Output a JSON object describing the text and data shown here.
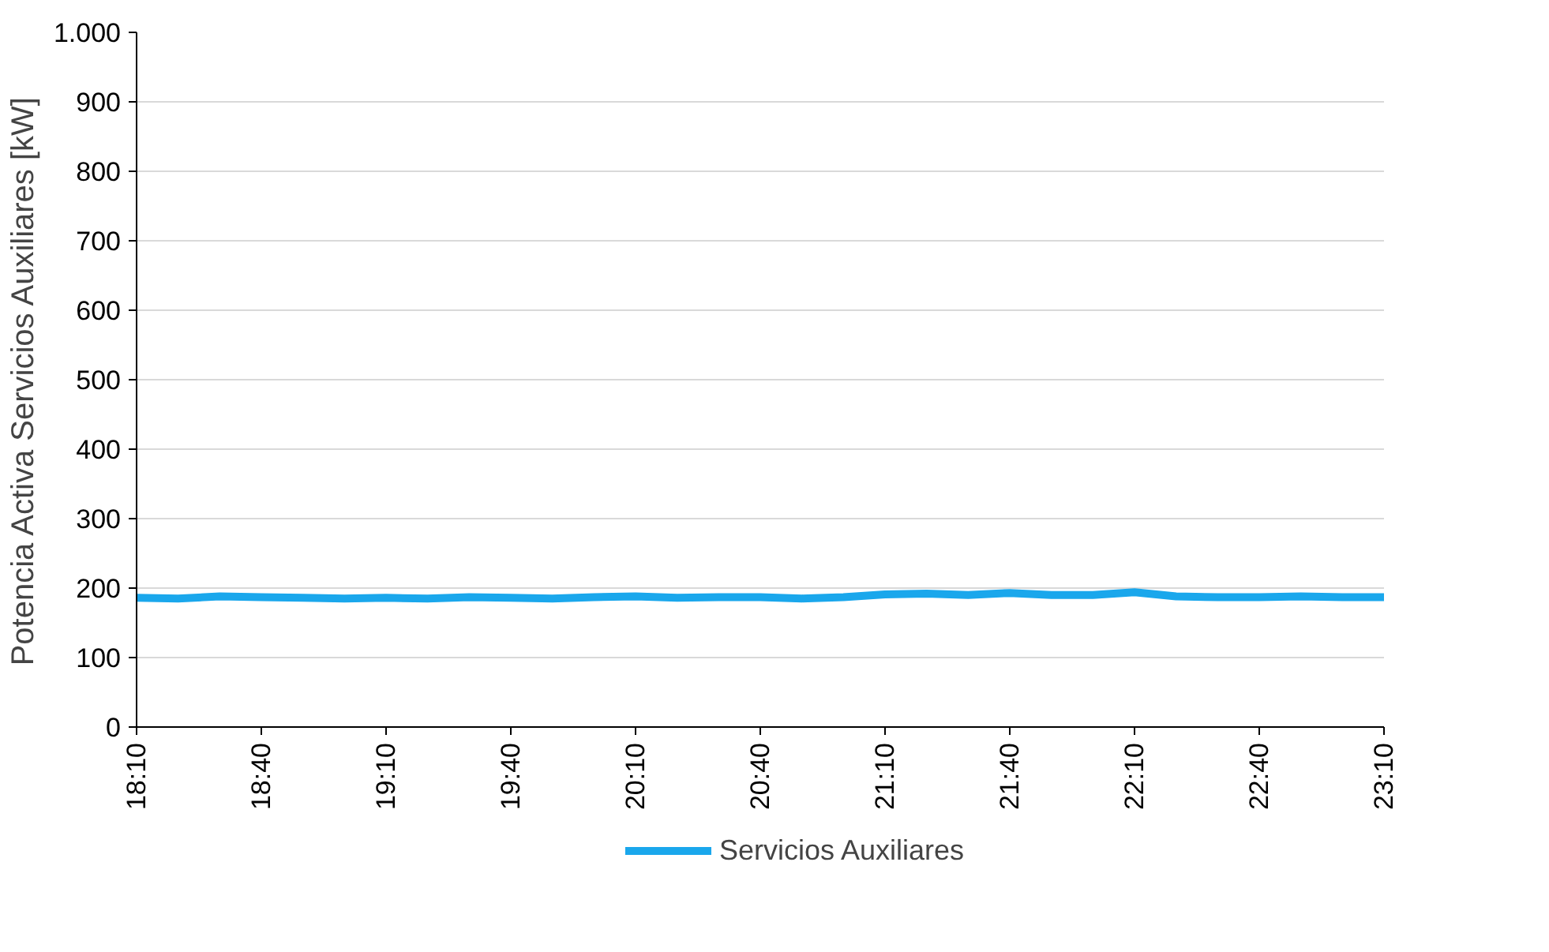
{
  "chart_data": {
    "type": "line",
    "ylabel": "Potencia Activa Servicios Auxiliares [kW]",
    "x": [
      18.1667,
      18.3333,
      18.5,
      18.6667,
      18.8333,
      19,
      19.1667,
      19.3333,
      19.5,
      19.6667,
      19.8333,
      20,
      20.1667,
      20.3333,
      20.5,
      20.6667,
      20.8333,
      21,
      21.1667,
      21.3333,
      21.5,
      21.6667,
      21.8333,
      22,
      22.1667,
      22.3333,
      22.5,
      22.6667,
      22.8333,
      23,
      23.1667
    ],
    "series": [
      {
        "name": "Servicios Auxiliares",
        "color": "#1aa7ec",
        "values": [
          186,
          185,
          188,
          187,
          186,
          185,
          186,
          185,
          187,
          186,
          185,
          187,
          188,
          186,
          187,
          187,
          185,
          187,
          191,
          192,
          190,
          193,
          190,
          190,
          194,
          188,
          187,
          187,
          188,
          187,
          187
        ]
      }
    ],
    "xlim": [
      18.1667,
      23.1667
    ],
    "xticks": [
      {
        "value": 18.1667,
        "label": "18:10"
      },
      {
        "value": 18.6667,
        "label": "18:40"
      },
      {
        "value": 19.1667,
        "label": "19:10"
      },
      {
        "value": 19.6667,
        "label": "19:40"
      },
      {
        "value": 20.1667,
        "label": "20:10"
      },
      {
        "value": 20.6667,
        "label": "20:40"
      },
      {
        "value": 21.1667,
        "label": "21:10"
      },
      {
        "value": 21.6667,
        "label": "21:40"
      },
      {
        "value": 22.1667,
        "label": "22:10"
      },
      {
        "value": 22.6667,
        "label": "22:40"
      },
      {
        "value": 23.1667,
        "label": "23:10"
      }
    ],
    "ylim": [
      0,
      1000
    ],
    "yticks": [
      0,
      100,
      200,
      300,
      400,
      500,
      600,
      700,
      800,
      900,
      {
        "value": 1000,
        "label": "1.000"
      }
    ],
    "grid": "y",
    "legend": "bottom",
    "marker": "none",
    "line_style": "solid"
  }
}
